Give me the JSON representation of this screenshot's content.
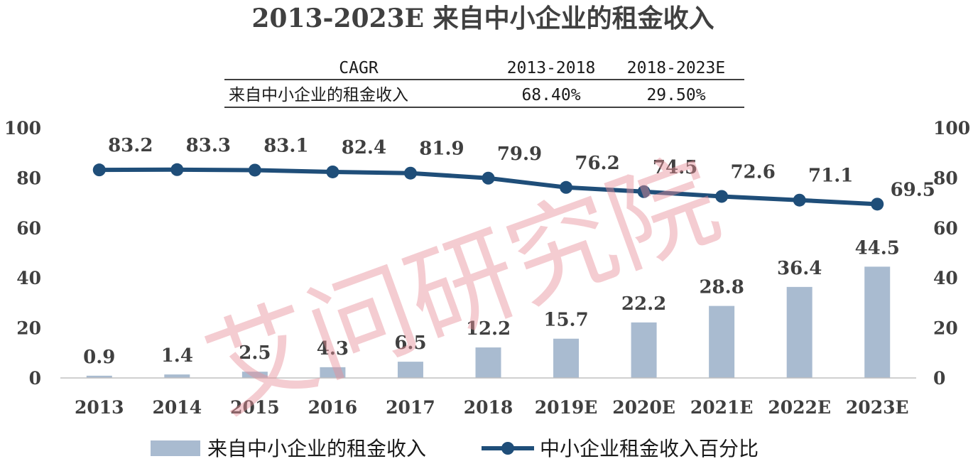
{
  "chart_data": {
    "type": "bar",
    "title": "2013-2023E 来自中小企业的租金收入",
    "categories": [
      "2013",
      "2014",
      "2015",
      "2016",
      "2017",
      "2018",
      "2019E",
      "2020E",
      "2021E",
      "2022E",
      "2023E"
    ],
    "series": [
      {
        "name": "来自中小企业的租金收入",
        "type": "bar",
        "axis": "left",
        "color": "#a9bbd0",
        "values": [
          0.9,
          1.4,
          2.5,
          4.3,
          6.5,
          12.2,
          15.7,
          22.2,
          28.8,
          36.4,
          44.5
        ]
      },
      {
        "name": "中小企业租金收入百分比",
        "type": "line",
        "axis": "right",
        "color": "#1f4e79",
        "values": [
          83.2,
          83.3,
          83.1,
          82.4,
          81.9,
          79.9,
          76.2,
          74.5,
          72.6,
          71.1,
          69.5
        ]
      }
    ],
    "y_left": {
      "min": 0,
      "max": 100,
      "ticks": [
        0,
        20,
        40,
        60,
        80,
        100
      ]
    },
    "y_right": {
      "min": 0,
      "max": 100,
      "ticks": [
        0,
        20,
        40,
        60,
        80,
        100
      ]
    },
    "grid": false,
    "legend_position": "bottom",
    "cagr_table": {
      "headers": [
        "CAGR",
        "2013-2018",
        "2018-2023E"
      ],
      "rows": [
        {
          "label": "来自中小企业的租金收入",
          "values": [
            "68.40%",
            "29.50%"
          ]
        }
      ]
    }
  },
  "watermark": "艾问研究院"
}
